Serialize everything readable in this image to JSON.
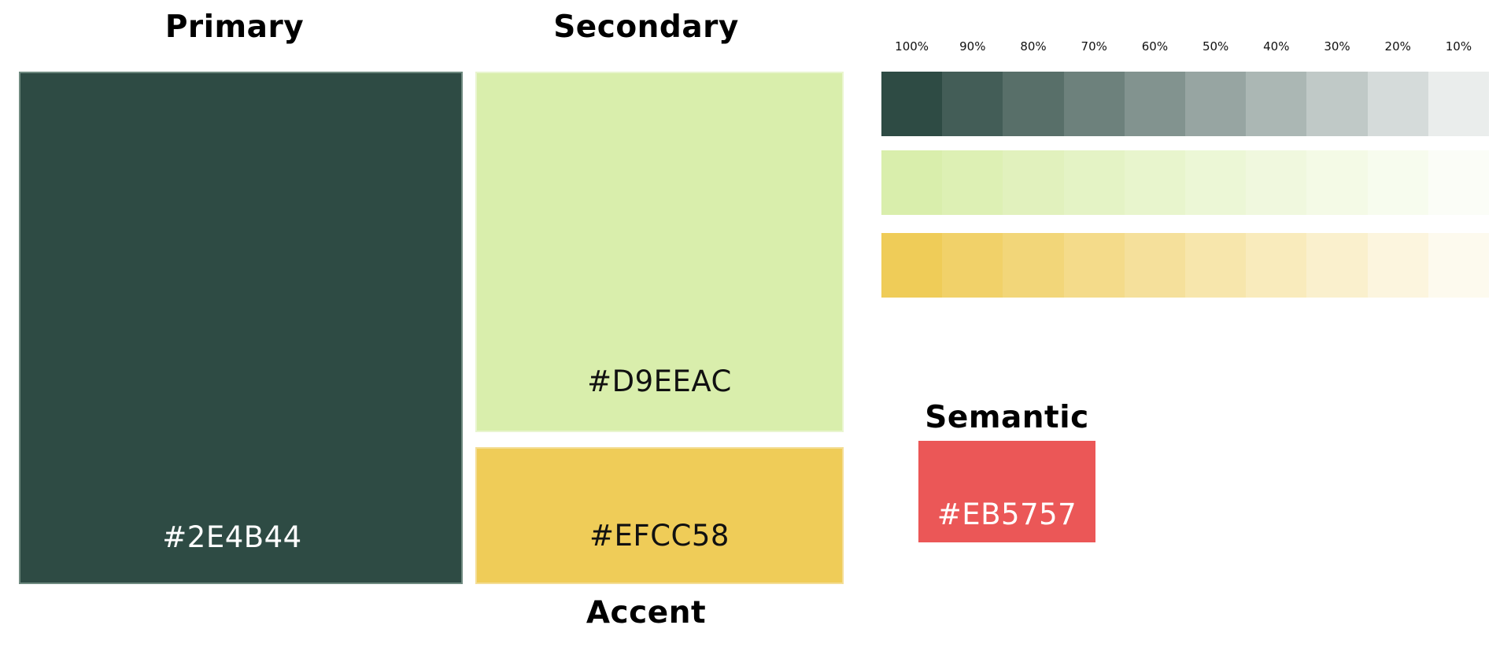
{
  "headings": {
    "primary": "Primary",
    "secondary": "Secondary",
    "accent": "Accent",
    "semantic": "Semantic"
  },
  "swatches": {
    "primary": {
      "hex": "#2E4B44",
      "color": "#2E4B44"
    },
    "secondary": {
      "hex": "#D9EEAC",
      "color": "#D9EEAC"
    },
    "accent": {
      "hex": "#EFCC58",
      "color": "#EFCC58"
    },
    "semantic": {
      "hex": "#EB5757",
      "color": "#EB5757"
    }
  },
  "tint_labels": [
    "100%",
    "90%",
    "80%",
    "70%",
    "60%",
    "50%",
    "40%",
    "30%",
    "20%",
    "10%"
  ],
  "tint_levels": [
    1.0,
    0.9,
    0.8,
    0.7,
    0.6,
    0.5,
    0.4,
    0.3,
    0.2,
    0.1
  ],
  "tint_rows": [
    {
      "base": "#2E4B44"
    },
    {
      "base": "#D9EEAC"
    },
    {
      "base": "#EFCC58"
    }
  ]
}
